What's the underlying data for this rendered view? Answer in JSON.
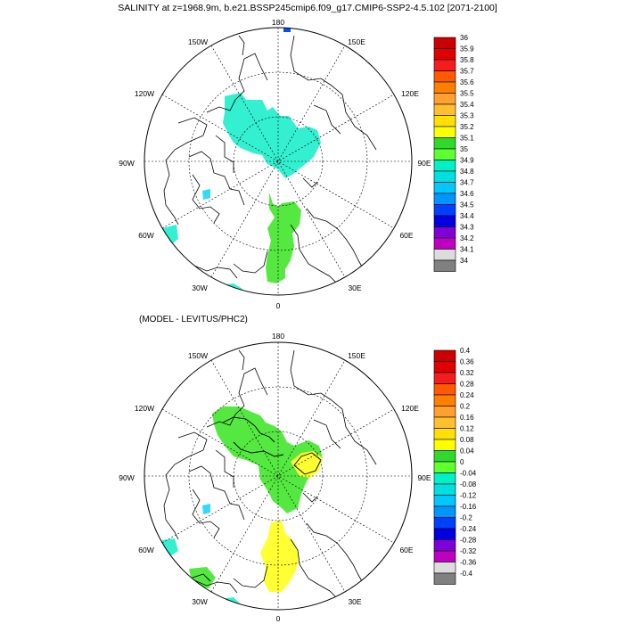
{
  "title": "SALINITY at z=1968.9m, b.e21.BSSP245cmip6.f09_g17.CMIP6-SSP2-4.5.102 [2071-2100]",
  "panel2_title": "(MODEL - LEVITUS/PHC2)",
  "longitude_labels": {
    "lon_180": "180",
    "lon_150w": "150W",
    "lon_150e": "150E",
    "lon_120w": "120W",
    "lon_120e": "120E",
    "lon_90w": "90W",
    "lon_90e": "90E",
    "lon_60w": "60W",
    "lon_60e": "60E",
    "lon_30w": "30W",
    "lon_30e": "30E",
    "lon_0": "0"
  },
  "colorbar1": {
    "labels": [
      "36",
      "35.9",
      "35.8",
      "35.7",
      "35.6",
      "35.5",
      "35.4",
      "35.3",
      "35.2",
      "35.1",
      "35",
      "34.9",
      "34.8",
      "34.7",
      "34.6",
      "34.5",
      "34.4",
      "34.3",
      "34.2",
      "34.1",
      "34"
    ],
    "colors": [
      "#cc0000",
      "#e00000",
      "#f41c1c",
      "#ff5a00",
      "#ff8000",
      "#ffa030",
      "#ffc030",
      "#ffe000",
      "#ffff00",
      "#30d830",
      "#60ff30",
      "#00f0c8",
      "#00e0e0",
      "#00c8ff",
      "#0096ff",
      "#0040ff",
      "#0000e0",
      "#8000d8",
      "#c000c0",
      "#dcdcdc",
      "#808080"
    ]
  },
  "colorbar2": {
    "labels": [
      "0.4",
      "0.36",
      "0.32",
      "0.28",
      "0.24",
      "0.2",
      "0.16",
      "0.12",
      "0.08",
      "0.04",
      "0",
      "-0.04",
      "-0.08",
      "-0.12",
      "-0.16",
      "-0.2",
      "-0.24",
      "-0.28",
      "-0.32",
      "-0.36",
      "-0.4"
    ],
    "colors": [
      "#cc0000",
      "#e00000",
      "#f41c1c",
      "#ff5a00",
      "#ff8000",
      "#ffa030",
      "#ffc030",
      "#ffe000",
      "#ffff00",
      "#30d830",
      "#60ff30",
      "#00f0c8",
      "#00e0e0",
      "#00c8ff",
      "#0096ff",
      "#0040ff",
      "#0000e0",
      "#8000d8",
      "#c000c0",
      "#dcdcdc",
      "#808080"
    ]
  },
  "field_colors": {
    "salinity_35": "#33f0d0",
    "salinity_351": "#55e840",
    "diff_004": "#55e840",
    "diff_012": "#ffff33",
    "diff_neg004": "#33f0d0",
    "diff_neg012": "#33d8ff",
    "diff_neg028": "#cc00cc",
    "deep_blue": "#0050ff"
  }
}
